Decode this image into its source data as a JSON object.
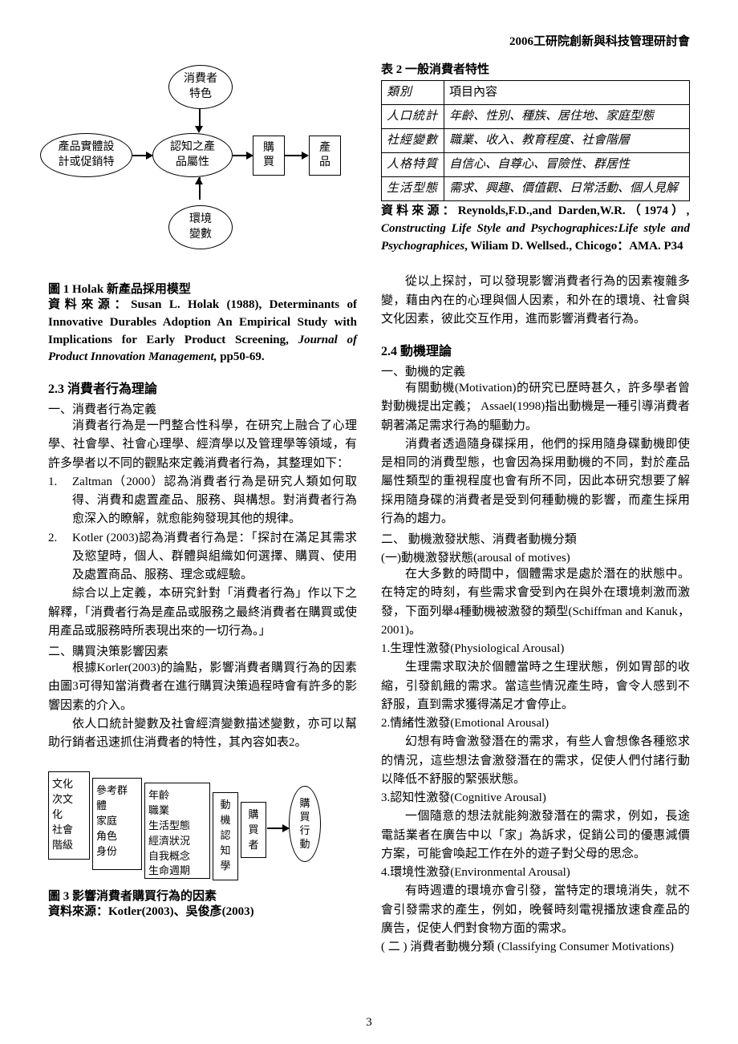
{
  "header": "2006工研院創新與科技管理研討會",
  "page_number": "3",
  "diagram1": {
    "nodes": {
      "consumer_char": "消費者\n特色",
      "product_entity": "產品實體設\n計或促銷特",
      "perceived_attr": "認知之產\n品屬性",
      "env_var": "環境\n變數",
      "purchase": "購\n買",
      "product": "產\n品"
    }
  },
  "figure1": {
    "caption": "圖 1 Holak  新產品採用模型",
    "source_prefix": "資料來源：Susan L. Holak (1988), Determinants of Innovative Durables Adoption An Empirical Study with Implications for Early Product Screening, ",
    "source_journal": "Journal of Product Innovation Management,",
    "source_suffix": " pp50-69."
  },
  "section23": {
    "title": "2.3 消費者行為理論",
    "sub1": "一、消費者行為定義",
    "p1": "消費者行為是一門整合性科學，在研究上融合了心理學、社會學、社會心理學、經濟學以及管理學等領域，有許多學者以不同的觀點來定義消費者行為，其整理如下：",
    "item1_num": "1.",
    "item1": "Zaltman（2000）認為消費者行為是研究人類如何取得、消費和處置產品、服務、與構想。對消費者行為愈深入的瞭解，就愈能夠發現其他的規律。",
    "item2_num": "2.",
    "item2": "Kotler (2003)認為消費者行為是：「探討在滿足其需求及慾望時，個人、群體與組織如何選擇、購買、使用及處置商品、服務、理念或經驗。",
    "p2": "綜合以上定義，本研究針對「消費者行為」作以下之解釋，「消費者行為是產品或服務之最終消費者在購買或使用產品或服務時所表現出來的一切行為。」",
    "sub2": "二、購買決策影響因素",
    "p3": "根據Korler(2003)的論點，影響消費者購買行為的因素由圖3可得知當消費者在進行購買決策過程時會有許多的影響因素的介入。",
    "p4": "依人口統計變數及社會經濟變數描述變數，亦可以幫助行銷者迅速抓住消費者的特性，其內容如表2。"
  },
  "diagram3": {
    "box1": "文化\n次文\n化\n社會\n階級",
    "box2": "參考群\n體\n家庭\n角色\n身份",
    "box3": "年齡\n職業\n生活型態\n經濟狀況\n自我概念\n生命週期",
    "box4": "動\n機\n認\n知\n學",
    "box5": "購\n買\n者",
    "ell": "購\n買\n行\n動"
  },
  "figure3": {
    "caption": "圖 3 影響消費者購買行為的因素",
    "source": "資料來源：Kotler(2003)、吳俊彥(2003)"
  },
  "table2": {
    "caption": "表 2  一般消費者特性",
    "header_col1": "類別",
    "header_col2": "項目內容",
    "rows": [
      {
        "c1": "人口統計",
        "c2": "年齡、性別、種族、居住地、家庭型態"
      },
      {
        "c1": "社經變數",
        "c2": "職業、收入、教育程度、社會階層"
      },
      {
        "c1": "人格特質",
        "c2": "自信心、自尊心、冒險性、群居性"
      },
      {
        "c1": "生活型態",
        "c2": "需求、興趣、價值觀、日常活動、個人見解"
      }
    ],
    "source_prefix": "資料來源：Reynolds,F.D.,and Darden,W.R.（1974）",
    "source_italic": ", Constructing Life Style and Psychographices:Life style and Psychographices",
    "source_suffix": ", Wiliam D. Wellsed., Chicogo：AMA. P34"
  },
  "col2": {
    "p_intro": "從以上探討，可以發現影響消費者行為的因素複雜多變，藉由內在的心理與個人因素，和外在的環境、社會與文化因素，彼此交互作用，進而影響消費者行為。",
    "section24": "2.4 動機理論",
    "sub1": "一、動機的定義",
    "p1": "有關動機(Motivation)的研究已歷時甚久，許多學者曾對動機提出定義；  Assael(1998)指出動機是一種引導消費者朝著滿足需求行為的驅動力。",
    "p2": "消費者透過隨身碟採用，他們的採用隨身碟動機即使是相同的消費型態，也會因為採用動機的不同，對於產品屬性類型的重視程度也會有所不同，因此本研究想要了解採用隨身碟的消費者是受到何種動機的影響，而產生採用行為的趨力。",
    "sub2": "二、 動機激發狀態、消費者動機分類",
    "sub2a": "(一)動機激發狀態(arousal of motives)",
    "p3": "在大多數的時間中，個體需求是處於潛在的狀態中。在特定的時刻，有些需求會受到內在與外在環境刺激而激發，下面列舉4種動機被激發的類型(Schiffman and Kanuk，2001)。",
    "h1": "1.生理性激發(Physiological Arousal)",
    "p4": "生理需求取決於個體當時之生理狀態，例如胃部的收縮，引發飢餓的需求。當這些情況產生時，會令人感到不舒服，直到需求獲得滿足才會停止。",
    "h2": "2.情緒性激發(Emotional Arousal)",
    "p5": "幻想有時會激發潛在的需求，有些人會想像各種慾求的情況，這些想法會激發潛在的需求，促使人們付諸行動以降低不舒服的緊張狀態。",
    "h3": "3.認知性激發(Cognitive Arousal)",
    "p6": "一個隨意的想法就能夠激發潛在的需求，例如，長途電話業者在廣告中以「家」為訴求，促銷公司的優惠減價方案，可能會喚起工作在外的遊子對父母的思念。",
    "h4": "4.環境性激發(Environmental Arousal)",
    "p7": "有時週遭的環境亦會引發，當特定的環境消失，就不會引發需求的產生，例如，晚餐時刻電視播放速食產品的廣告，促使人們對食物方面的需求。",
    "sub2b": "( 二 ) 消費者動機分類 (Classifying  Consumer Motivations)"
  }
}
